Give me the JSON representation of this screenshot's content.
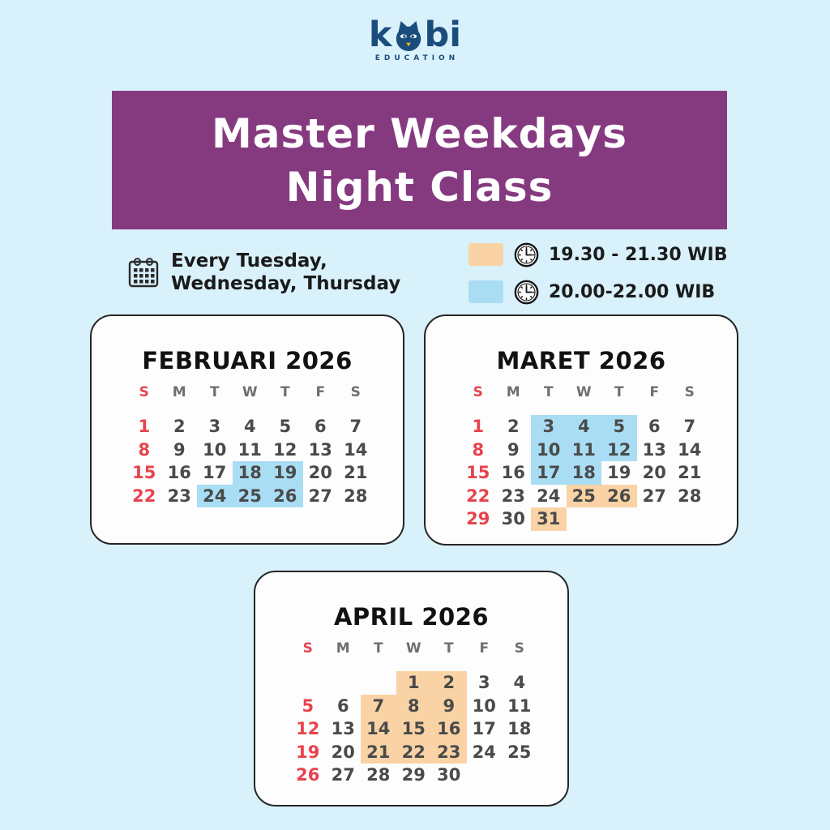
{
  "page": {
    "background": "#d9f1fb"
  },
  "logo": {
    "prefix": "k",
    "suffix": "bi",
    "subtitle": "EDUCATION",
    "color": "#1b4d7c",
    "owl_icon": "owl-face-icon",
    "beak_color": "#f0b52e"
  },
  "banner": {
    "line1": "Master Weekdays",
    "line2": "Night Class",
    "background": "#853a80",
    "text_color": "#ffffff"
  },
  "schedule_note": {
    "icon": "calendar-icon",
    "line1": "Every Tuesday,",
    "line2": "Wednesday, Thursday"
  },
  "legend": {
    "items": [
      {
        "icon": "clock-icon",
        "swatch_color": "#f9d3a5",
        "time": "19.30 - 21.30 WIB"
      },
      {
        "icon": "clock-icon",
        "swatch_color": "#a9ddf4",
        "time": "20.00-22.00 WIB"
      }
    ]
  },
  "colors": {
    "sunday_red": "#e8434e",
    "weekday_gray": "#4a4a4a",
    "header_gray": "#6f6f6f",
    "highlight_blue": "#a9ddf4",
    "highlight_orange": "#f9d3a5"
  },
  "day_headers": [
    "S",
    "M",
    "T",
    "W",
    "T",
    "F",
    "S"
  ],
  "calendars": [
    {
      "title": "FEBRUARI 2026",
      "weeks": [
        [
          {
            "d": 1,
            "s": true
          },
          {
            "d": 2
          },
          {
            "d": 3
          },
          {
            "d": 4
          },
          {
            "d": 5
          },
          {
            "d": 6
          },
          {
            "d": 7
          }
        ],
        [
          {
            "d": 8,
            "s": true
          },
          {
            "d": 9
          },
          {
            "d": 10
          },
          {
            "d": 11
          },
          {
            "d": 12
          },
          {
            "d": 13
          },
          {
            "d": 14
          }
        ],
        [
          {
            "d": 15,
            "s": true
          },
          {
            "d": 16
          },
          {
            "d": 17
          },
          {
            "d": 18,
            "h": "b"
          },
          {
            "d": 19,
            "h": "b"
          },
          {
            "d": 20
          },
          {
            "d": 21
          }
        ],
        [
          {
            "d": 22,
            "s": true
          },
          {
            "d": 23
          },
          {
            "d": 24,
            "h": "b"
          },
          {
            "d": 25,
            "h": "b"
          },
          {
            "d": 26,
            "h": "b"
          },
          {
            "d": 27
          },
          {
            "d": 28
          }
        ]
      ]
    },
    {
      "title": "MARET 2026",
      "weeks": [
        [
          {
            "d": 1,
            "s": true
          },
          {
            "d": 2
          },
          {
            "d": 3,
            "h": "b"
          },
          {
            "d": 4,
            "h": "b"
          },
          {
            "d": 5,
            "h": "b"
          },
          {
            "d": 6
          },
          {
            "d": 7
          }
        ],
        [
          {
            "d": 8,
            "s": true
          },
          {
            "d": 9
          },
          {
            "d": 10,
            "h": "b"
          },
          {
            "d": 11,
            "h": "b"
          },
          {
            "d": 12,
            "h": "b"
          },
          {
            "d": 13
          },
          {
            "d": 14
          }
        ],
        [
          {
            "d": 15,
            "s": true
          },
          {
            "d": 16
          },
          {
            "d": 17,
            "h": "b"
          },
          {
            "d": 18,
            "h": "b"
          },
          {
            "d": 19
          },
          {
            "d": 20
          },
          {
            "d": 21
          }
        ],
        [
          {
            "d": 22,
            "s": true
          },
          {
            "d": 23
          },
          {
            "d": 24
          },
          {
            "d": 25,
            "h": "o"
          },
          {
            "d": 26,
            "h": "o"
          },
          {
            "d": 27
          },
          {
            "d": 28
          }
        ],
        [
          {
            "d": 29,
            "s": true
          },
          {
            "d": 30
          },
          {
            "d": 31,
            "h": "o"
          },
          null,
          null,
          null,
          null
        ]
      ]
    },
    {
      "title": "APRIL 2026",
      "weeks": [
        [
          null,
          null,
          null,
          {
            "d": 1,
            "h": "o"
          },
          {
            "d": 2,
            "h": "o"
          },
          {
            "d": 3
          },
          {
            "d": 4
          }
        ],
        [
          {
            "d": 5,
            "s": true
          },
          {
            "d": 6
          },
          {
            "d": 7,
            "h": "o"
          },
          {
            "d": 8,
            "h": "o"
          },
          {
            "d": 9,
            "h": "o"
          },
          {
            "d": 10
          },
          {
            "d": 11
          }
        ],
        [
          {
            "d": 12,
            "s": true
          },
          {
            "d": 13
          },
          {
            "d": 14,
            "h": "o"
          },
          {
            "d": 15,
            "h": "o"
          },
          {
            "d": 16,
            "h": "o"
          },
          {
            "d": 17
          },
          {
            "d": 18
          }
        ],
        [
          {
            "d": 19,
            "s": true
          },
          {
            "d": 20
          },
          {
            "d": 21,
            "h": "o"
          },
          {
            "d": 22,
            "h": "o"
          },
          {
            "d": 23,
            "h": "o"
          },
          {
            "d": 24
          },
          {
            "d": 25
          }
        ],
        [
          {
            "d": 26,
            "s": true
          },
          {
            "d": 27
          },
          {
            "d": 28
          },
          {
            "d": 29
          },
          {
            "d": 30
          },
          null,
          null
        ]
      ]
    }
  ]
}
